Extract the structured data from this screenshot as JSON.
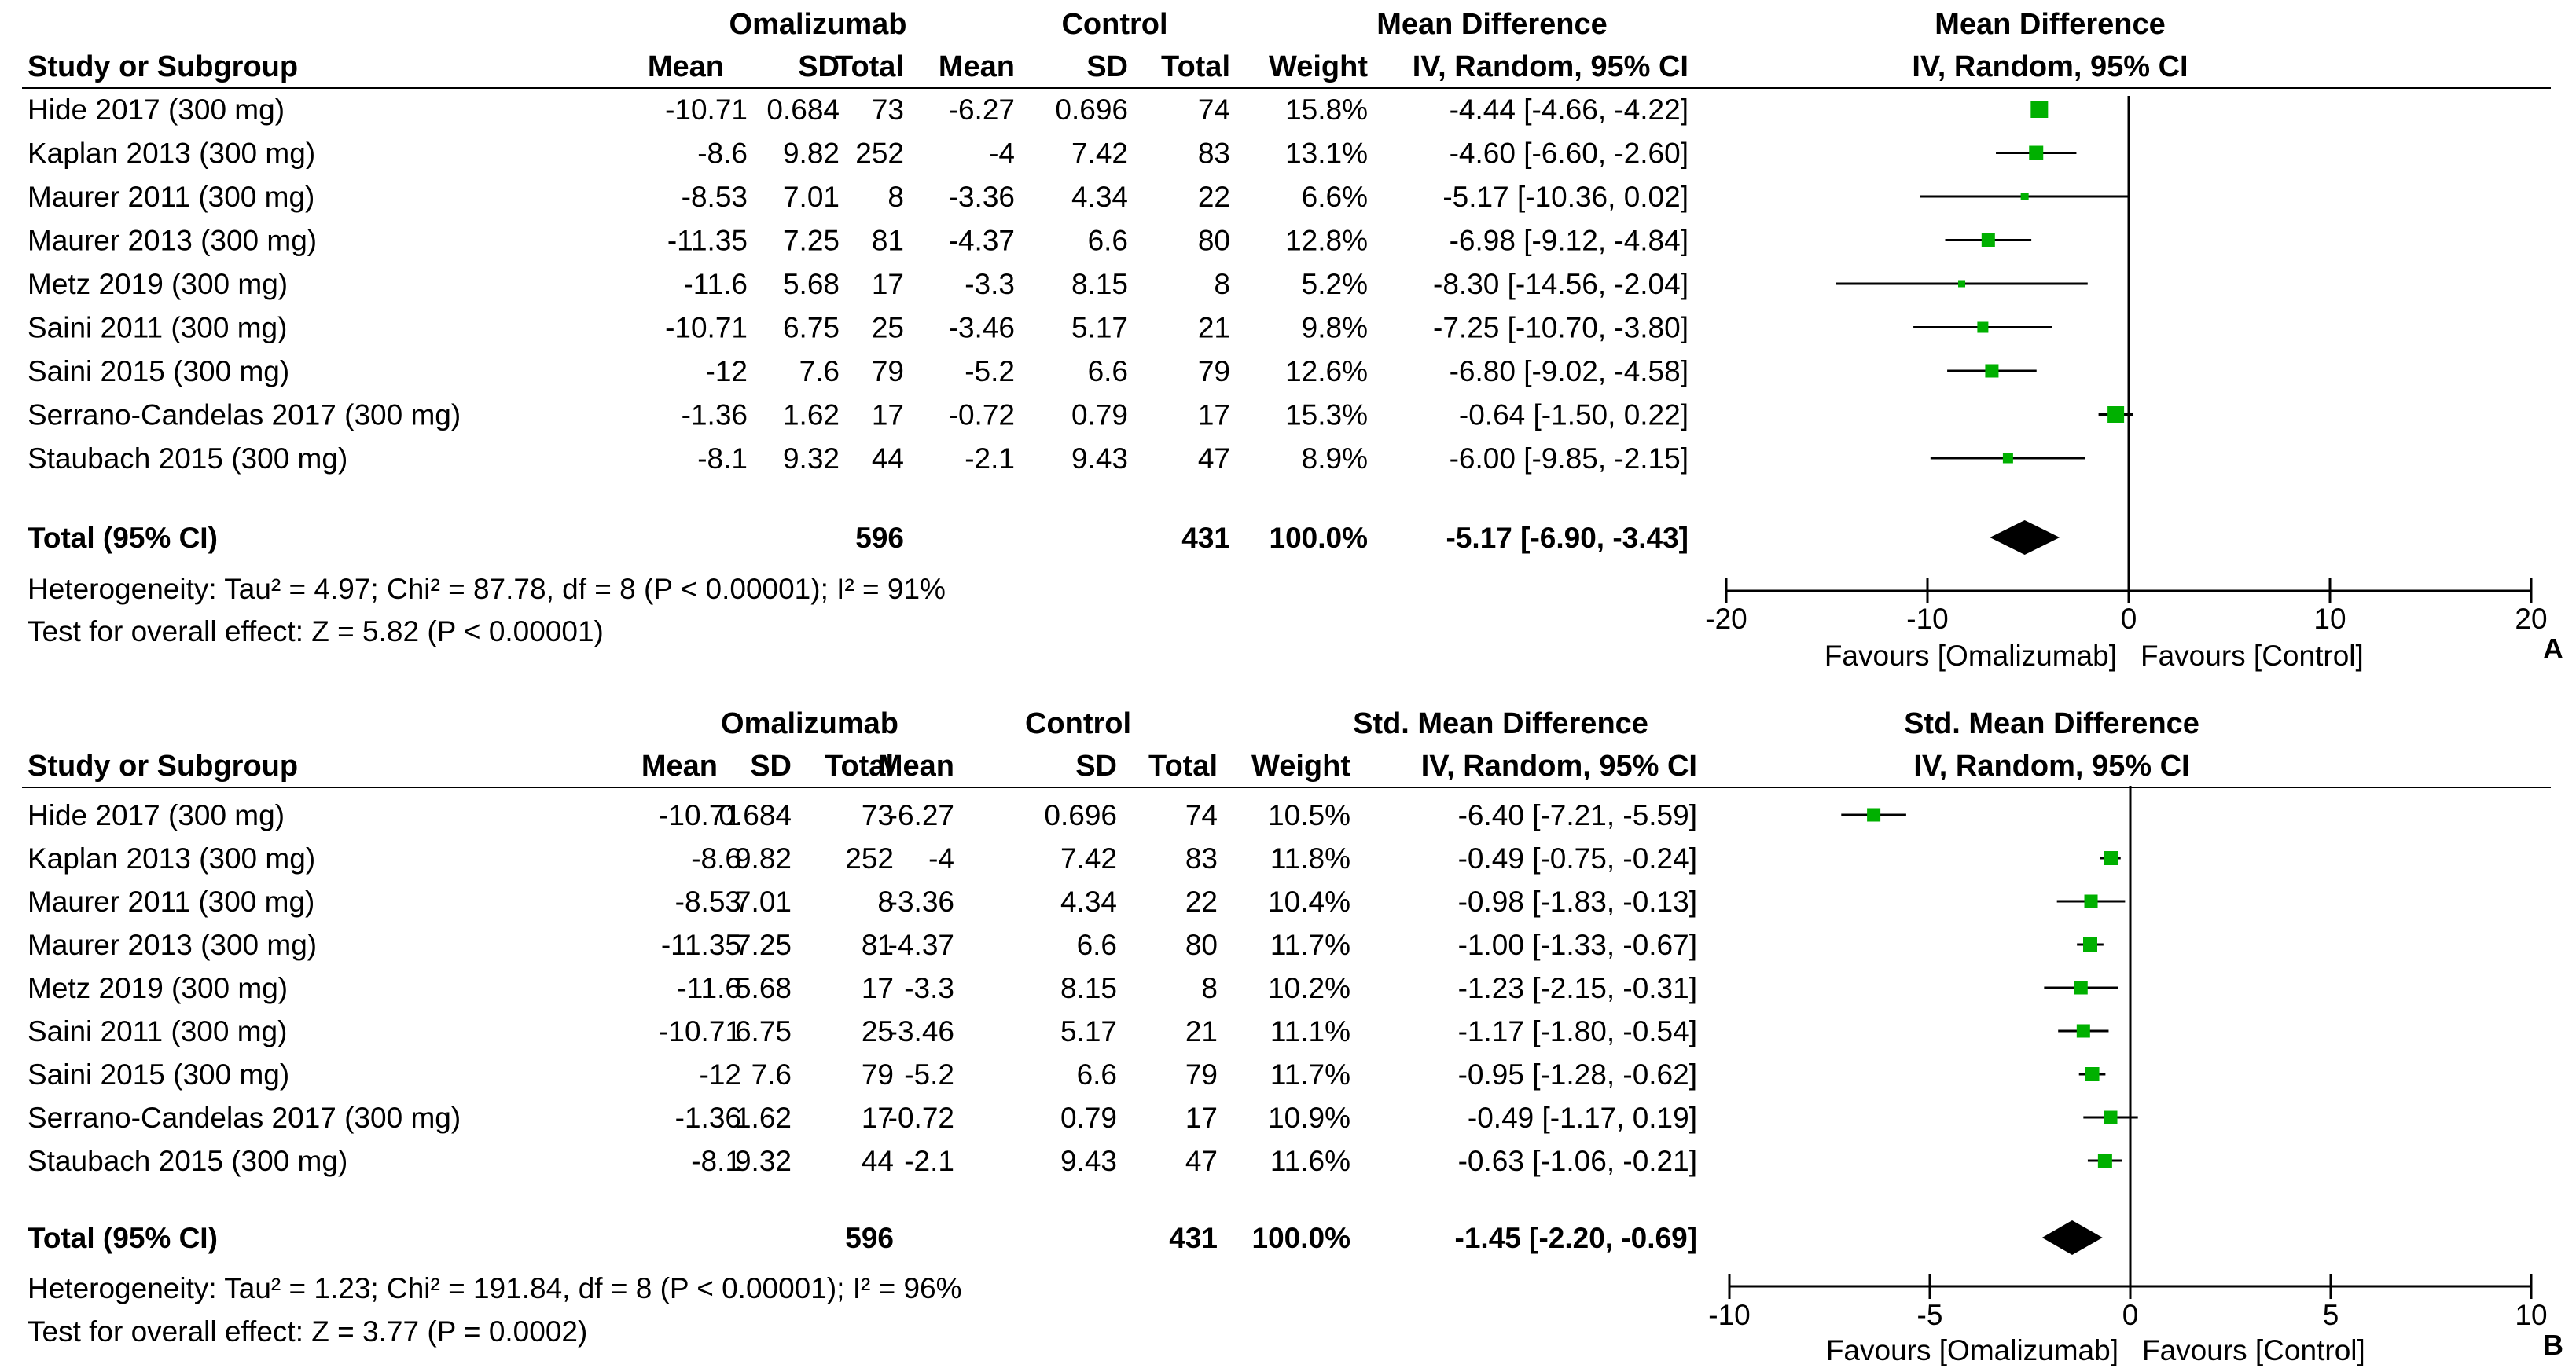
{
  "accent_color": "#00b000",
  "chart_data": [
    {
      "type": "forest",
      "panel_label": "A",
      "group1": "Omalizumab",
      "group2": "Control",
      "effect_label": "Mean Difference",
      "method_label": "IV, Random, 95% CI",
      "columns": {
        "study": "Study or Subgroup",
        "mean": "Mean",
        "sd": "SD",
        "total": "Total",
        "weight": "Weight"
      },
      "studies": [
        {
          "name": "Hide 2017 (300 mg)",
          "m1": "-10.71",
          "sd1": "0.684",
          "n1": "73",
          "m2": "-6.27",
          "sd2": "0.696",
          "n2": "74",
          "weight": "15.8%",
          "ci": "-4.44 [-4.66, -4.22]",
          "est": -4.44,
          "lo": -4.66,
          "hi": -4.22
        },
        {
          "name": "Kaplan 2013 (300 mg)",
          "m1": "-8.6",
          "sd1": "9.82",
          "n1": "252",
          "m2": "-4",
          "sd2": "7.42",
          "n2": "83",
          "weight": "13.1%",
          "ci": "-4.60 [-6.60, -2.60]",
          "est": -4.6,
          "lo": -6.6,
          "hi": -2.6
        },
        {
          "name": "Maurer 2011 (300 mg)",
          "m1": "-8.53",
          "sd1": "7.01",
          "n1": "8",
          "m2": "-3.36",
          "sd2": "4.34",
          "n2": "22",
          "weight": "6.6%",
          "ci": "-5.17 [-10.36, 0.02]",
          "est": -5.17,
          "lo": -10.36,
          "hi": 0.02
        },
        {
          "name": "Maurer 2013 (300 mg)",
          "m1": "-11.35",
          "sd1": "7.25",
          "n1": "81",
          "m2": "-4.37",
          "sd2": "6.6",
          "n2": "80",
          "weight": "12.8%",
          "ci": "-6.98 [-9.12, -4.84]",
          "est": -6.98,
          "lo": -9.12,
          "hi": -4.84
        },
        {
          "name": "Metz 2019 (300 mg)",
          "m1": "-11.6",
          "sd1": "5.68",
          "n1": "17",
          "m2": "-3.3",
          "sd2": "8.15",
          "n2": "8",
          "weight": "5.2%",
          "ci": "-8.30 [-14.56, -2.04]",
          "est": -8.3,
          "lo": -14.56,
          "hi": -2.04
        },
        {
          "name": "Saini 2011 (300 mg)",
          "m1": "-10.71",
          "sd1": "6.75",
          "n1": "25",
          "m2": "-3.46",
          "sd2": "5.17",
          "n2": "21",
          "weight": "9.8%",
          "ci": "-7.25 [-10.70, -3.80]",
          "est": -7.25,
          "lo": -10.7,
          "hi": -3.8
        },
        {
          "name": "Saini 2015 (300 mg)",
          "m1": "-12",
          "sd1": "7.6",
          "n1": "79",
          "m2": "-5.2",
          "sd2": "6.6",
          "n2": "79",
          "weight": "12.6%",
          "ci": "-6.80 [-9.02, -4.58]",
          "est": -6.8,
          "lo": -9.02,
          "hi": -4.58
        },
        {
          "name": "Serrano-Candelas 2017 (300 mg)",
          "m1": "-1.36",
          "sd1": "1.62",
          "n1": "17",
          "m2": "-0.72",
          "sd2": "0.79",
          "n2": "17",
          "weight": "15.3%",
          "ci": "-0.64 [-1.50, 0.22]",
          "est": -0.64,
          "lo": -1.5,
          "hi": 0.22
        },
        {
          "name": "Staubach 2015 (300 mg)",
          "m1": "-8.1",
          "sd1": "9.32",
          "n1": "44",
          "m2": "-2.1",
          "sd2": "9.43",
          "n2": "47",
          "weight": "8.9%",
          "ci": "-6.00 [-9.85, -2.15]",
          "est": -6.0,
          "lo": -9.85,
          "hi": -2.15
        }
      ],
      "total": {
        "label": "Total (95% CI)",
        "n1": "596",
        "n2": "431",
        "weight": "100.0%",
        "ci": "-5.17 [-6.90, -3.43]",
        "est": -5.17,
        "lo": -6.9,
        "hi": -3.43
      },
      "heterogeneity": "Heterogeneity: Tau² = 4.97; Chi² = 87.78, df = 8 (P < 0.00001); I² = 91%",
      "overall_effect": "Test for overall effect: Z = 5.82 (P < 0.00001)",
      "axis": {
        "min": -20,
        "max": 20,
        "ticks": [
          -20,
          -10,
          0,
          10,
          20
        ],
        "tick_labels": [
          "-20",
          "-10",
          "0",
          "10",
          "20"
        ]
      },
      "favours_left": "Favours [Omalizumab]",
      "favours_right": "Favours [Control]"
    },
    {
      "type": "forest",
      "panel_label": "B",
      "group1": "Omalizumab",
      "group2": "Control",
      "effect_label": "Std. Mean Difference",
      "method_label": "IV, Random, 95% CI",
      "columns": {
        "study": "Study or Subgroup",
        "mean": "Mean",
        "sd": "SD",
        "total": "Total",
        "weight": "Weight"
      },
      "studies": [
        {
          "name": "Hide 2017 (300 mg)",
          "m1": "-10.71",
          "sd1": "0.684",
          "n1": "73",
          "m2": "-6.27",
          "sd2": "0.696",
          "n2": "74",
          "weight": "10.5%",
          "ci": "-6.40 [-7.21, -5.59]",
          "est": -6.4,
          "lo": -7.21,
          "hi": -5.59
        },
        {
          "name": "Kaplan 2013 (300 mg)",
          "m1": "-8.6",
          "sd1": "9.82",
          "n1": "252",
          "m2": "-4",
          "sd2": "7.42",
          "n2": "83",
          "weight": "11.8%",
          "ci": "-0.49 [-0.75, -0.24]",
          "est": -0.49,
          "lo": -0.75,
          "hi": -0.24
        },
        {
          "name": "Maurer 2011 (300 mg)",
          "m1": "-8.53",
          "sd1": "7.01",
          "n1": "8",
          "m2": "-3.36",
          "sd2": "4.34",
          "n2": "22",
          "weight": "10.4%",
          "ci": "-0.98 [-1.83, -0.13]",
          "est": -0.98,
          "lo": -1.83,
          "hi": -0.13
        },
        {
          "name": "Maurer 2013 (300 mg)",
          "m1": "-11.35",
          "sd1": "7.25",
          "n1": "81",
          "m2": "-4.37",
          "sd2": "6.6",
          "n2": "80",
          "weight": "11.7%",
          "ci": "-1.00 [-1.33, -0.67]",
          "est": -1.0,
          "lo": -1.33,
          "hi": -0.67
        },
        {
          "name": "Metz 2019 (300 mg)",
          "m1": "-11.6",
          "sd1": "5.68",
          "n1": "17",
          "m2": "-3.3",
          "sd2": "8.15",
          "n2": "8",
          "weight": "10.2%",
          "ci": "-1.23 [-2.15, -0.31]",
          "est": -1.23,
          "lo": -2.15,
          "hi": -0.31
        },
        {
          "name": "Saini 2011 (300 mg)",
          "m1": "-10.71",
          "sd1": "6.75",
          "n1": "25",
          "m2": "-3.46",
          "sd2": "5.17",
          "n2": "21",
          "weight": "11.1%",
          "ci": "-1.17 [-1.80, -0.54]",
          "est": -1.17,
          "lo": -1.8,
          "hi": -0.54
        },
        {
          "name": "Saini 2015 (300 mg)",
          "m1": "-12",
          "sd1": "7.6",
          "n1": "79",
          "m2": "-5.2",
          "sd2": "6.6",
          "n2": "79",
          "weight": "11.7%",
          "ci": "-0.95 [-1.28, -0.62]",
          "est": -0.95,
          "lo": -1.28,
          "hi": -0.62
        },
        {
          "name": "Serrano-Candelas 2017 (300 mg)",
          "m1": "-1.36",
          "sd1": "1.62",
          "n1": "17",
          "m2": "-0.72",
          "sd2": "0.79",
          "n2": "17",
          "weight": "10.9%",
          "ci": "-0.49 [-1.17, 0.19]",
          "est": -0.49,
          "lo": -1.17,
          "hi": 0.19
        },
        {
          "name": "Staubach 2015 (300 mg)",
          "m1": "-8.1",
          "sd1": "9.32",
          "n1": "44",
          "m2": "-2.1",
          "sd2": "9.43",
          "n2": "47",
          "weight": "11.6%",
          "ci": "-0.63 [-1.06, -0.21]",
          "est": -0.63,
          "lo": -1.06,
          "hi": -0.21
        }
      ],
      "total": {
        "label": "Total (95% CI)",
        "n1": "596",
        "n2": "431",
        "weight": "100.0%",
        "ci": "-1.45 [-2.20, -0.69]",
        "est": -1.45,
        "lo": -2.2,
        "hi": -0.69
      },
      "heterogeneity": "Heterogeneity: Tau² = 1.23; Chi² = 191.84, df = 8 (P < 0.00001); I² = 96%",
      "overall_effect": "Test for overall effect: Z = 3.77 (P = 0.0002)",
      "axis": {
        "min": -10,
        "max": 10,
        "ticks": [
          -10,
          -5,
          0,
          5,
          10
        ],
        "tick_labels": [
          "-10",
          "-5",
          "0",
          "5",
          "10"
        ]
      },
      "favours_left": "Favours [Omalizumab]",
      "favours_right": "Favours [Control]"
    }
  ]
}
